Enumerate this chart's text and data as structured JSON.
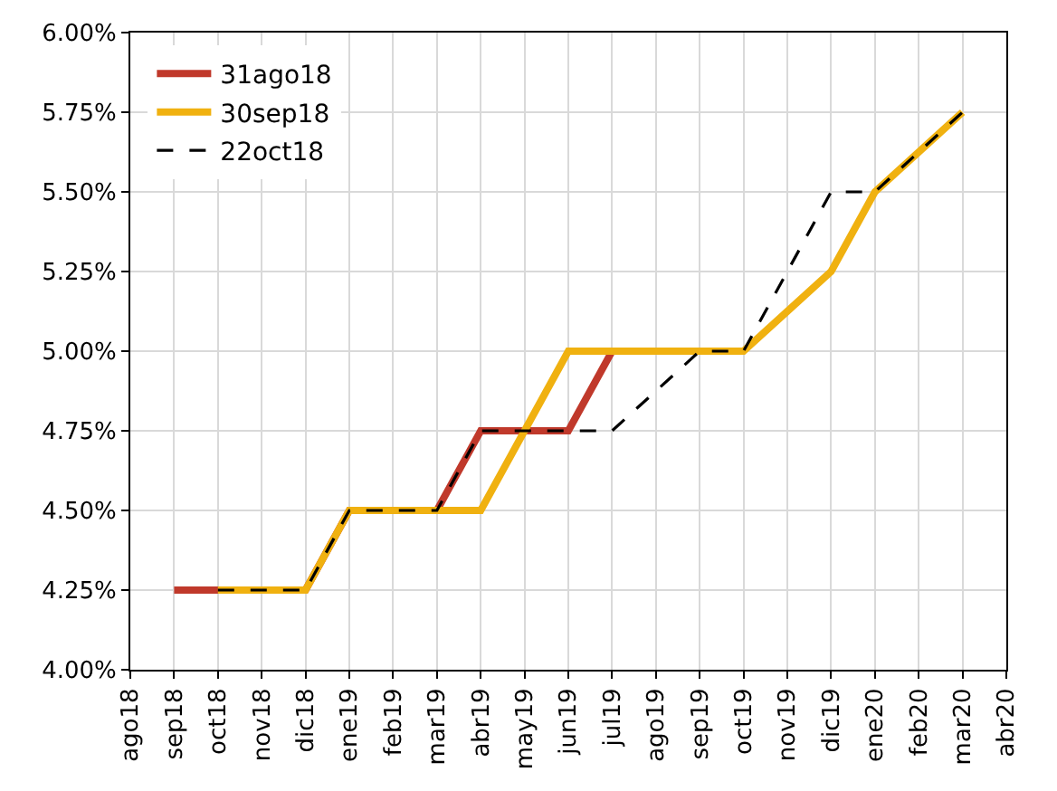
{
  "chart_data": {
    "type": "line",
    "categories": [
      "ago18",
      "sep18",
      "oct18",
      "nov18",
      "dic18",
      "ene19",
      "feb19",
      "mar19",
      "abr19",
      "may19",
      "jun19",
      "jul19",
      "ago19",
      "sep19",
      "oct19",
      "nov19",
      "dic19",
      "ene20",
      "feb20",
      "mar20",
      "abr20"
    ],
    "series": [
      {
        "name": "31ago18",
        "color": "#c0392b",
        "line_style": "solid",
        "values": [
          null,
          4.25,
          4.25,
          4.25,
          4.25,
          4.5,
          4.5,
          4.5,
          4.75,
          4.75,
          4.75,
          5.0,
          null,
          null,
          null,
          null,
          null,
          null,
          null,
          null,
          null
        ]
      },
      {
        "name": "30sep18",
        "color": "#f0b110",
        "line_style": "solid",
        "values": [
          null,
          null,
          4.25,
          4.25,
          4.25,
          4.5,
          4.5,
          4.5,
          4.5,
          4.75,
          5.0,
          5.0,
          5.0,
          5.0,
          5.0,
          5.125,
          5.25,
          5.5,
          5.625,
          5.75,
          null
        ]
      },
      {
        "name": "22oct18",
        "color": "#000000",
        "line_style": "dashed",
        "values": [
          null,
          null,
          4.25,
          4.25,
          4.25,
          4.5,
          4.5,
          4.5,
          4.75,
          4.75,
          4.75,
          4.75,
          4.875,
          5.0,
          5.0,
          5.25,
          5.5,
          5.5,
          5.625,
          5.75,
          null
        ]
      }
    ],
    "ylim": [
      4.0,
      6.0
    ],
    "yticks": [
      {
        "value": 4.0,
        "label": "4.00%"
      },
      {
        "value": 4.25,
        "label": "4.25%"
      },
      {
        "value": 4.5,
        "label": "4.50%"
      },
      {
        "value": 4.75,
        "label": "4.75%"
      },
      {
        "value": 5.0,
        "label": "5.00%"
      },
      {
        "value": 5.25,
        "label": "5.25%"
      },
      {
        "value": 5.5,
        "label": "5.50%"
      },
      {
        "value": 5.75,
        "label": "5.75%"
      },
      {
        "value": 6.0,
        "label": "6.00%"
      }
    ],
    "grid": true,
    "legend": "top left",
    "marker": "none"
  }
}
